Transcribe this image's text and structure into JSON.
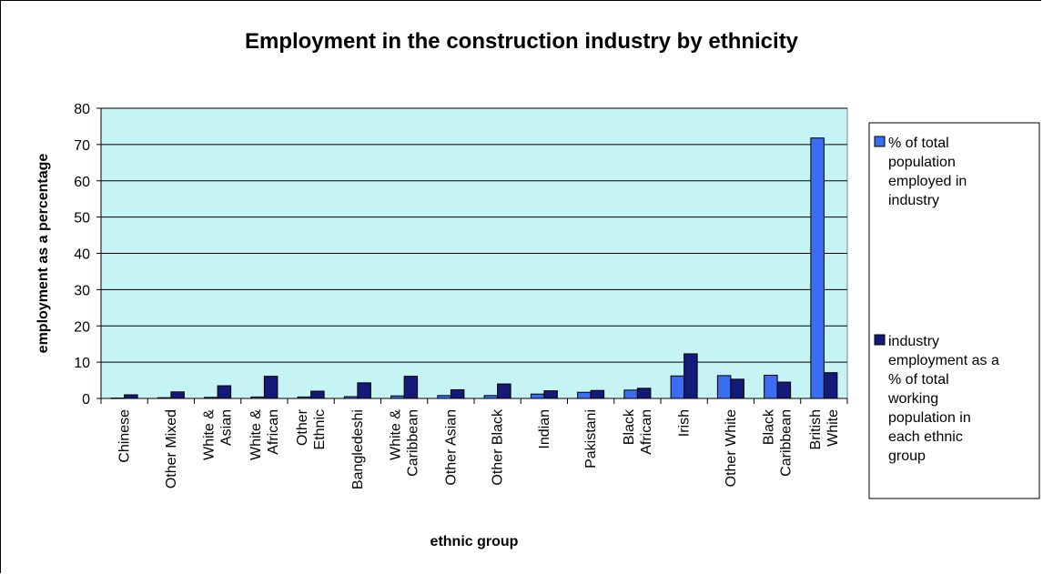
{
  "chart_data": {
    "type": "bar",
    "title": "Employment in the construction industry by ethnicity",
    "xlabel": "ethnic group",
    "ylabel": "employment as a percentage",
    "ylim": [
      0,
      80
    ],
    "yticks": [
      0,
      10,
      20,
      30,
      40,
      50,
      60,
      70,
      80
    ],
    "grid": true,
    "legend_position": "right",
    "categories": [
      [
        "Chinese"
      ],
      [
        "Other Mixed"
      ],
      [
        "White &",
        "Asian"
      ],
      [
        "White &",
        "African"
      ],
      [
        "Other",
        "Ethnic"
      ],
      [
        "Bangledeshi"
      ],
      [
        "White &",
        "Caribbean"
      ],
      [
        "Other Asian"
      ],
      [
        "Other Black"
      ],
      [
        "Indian"
      ],
      [
        "Pakistani"
      ],
      [
        "Black",
        "African"
      ],
      [
        "Irish"
      ],
      [
        "Other White"
      ],
      [
        "Black",
        "Caribbean"
      ],
      [
        "British",
        "White"
      ]
    ],
    "series": [
      {
        "name": "% of total population employed in industry",
        "legend_lines": [
          "% of total",
          "population",
          "employed in",
          "industry"
        ],
        "color": "#3a6df0",
        "values": [
          0.1,
          0.2,
          0.3,
          0.4,
          0.4,
          0.5,
          0.7,
          0.8,
          0.8,
          1.2,
          1.7,
          2.3,
          6.2,
          6.3,
          6.4,
          71.8
        ]
      },
      {
        "name": "industry employment as a % of total working population in each ethnic group",
        "legend_lines": [
          "industry",
          "employment as a",
          "% of total",
          "working",
          "population in",
          "each ethnic",
          "group"
        ],
        "color": "#141a78",
        "values": [
          1.0,
          1.8,
          3.5,
          6.1,
          2.0,
          4.3,
          6.1,
          2.4,
          4.0,
          2.1,
          2.2,
          2.8,
          12.3,
          5.3,
          4.5,
          7.1
        ]
      }
    ],
    "colors": {
      "plot_background": "#c6f4f4",
      "grid": "#000000"
    }
  }
}
